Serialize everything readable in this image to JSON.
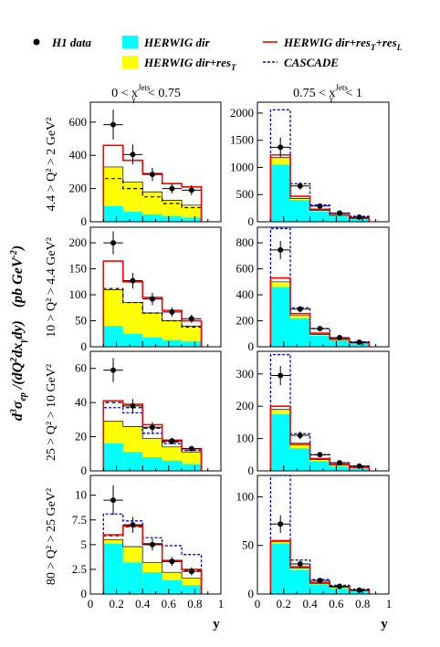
{
  "colors": {
    "dir": "#00ffff",
    "dirres": "#ffff00",
    "redline": "#ff0000",
    "cascade": "#0000ff",
    "data": "#000000",
    "dashed": "#000000"
  },
  "legend": {
    "data": "H1 data",
    "dir": "HERWIG dir",
    "dirres": "HERWIG dir+res",
    "dirres_sub": "T",
    "full": "HERWIG dir+res",
    "full_sub": "T",
    "full_tail": "+res",
    "full_sub2": "L",
    "cascade": "CASCADE"
  },
  "global_ylabel": "d³σ_ep / (dQ²dx_γ dy)   (pb GeV⁻²)",
  "global_ylabel_parts": {
    "main": "d",
    "sup3": "3",
    "sigma": "σ",
    "ep": "ep",
    "mid": " /(dQ",
    "sup2": "2",
    "dx": "dx",
    "gam": "γ",
    "end": "dy)",
    "units": "(pb GeV",
    "units_sup": "-2",
    "units_end": ")"
  },
  "xlabel": "y",
  "columns": [
    {
      "title_left": "0 < x",
      "title_sup": "Jets",
      "title_sub": "γ",
      "title_right": " < 0.75"
    },
    {
      "title_left": "0.75 < x",
      "title_sup": "Jets",
      "title_sub": "γ",
      "title_right": " < 1"
    }
  ],
  "rows": [
    {
      "label": "4.4 > Q² > 2 GeV²"
    },
    {
      "label": "10 > Q² > 4.4 GeV²"
    },
    {
      "label": "25 > Q² > 10 GeV²"
    },
    {
      "label": "80 > Q² > 25 GeV²"
    }
  ],
  "xticks": [
    "0",
    "0.2",
    "0.4",
    "0.6",
    "0.8",
    "1"
  ],
  "chart_data": [
    {
      "type": "bar",
      "row": 0,
      "col": 0,
      "ylim": [
        0,
        720
      ],
      "yticks": [
        0,
        200,
        400,
        600
      ],
      "bins": [
        0.1,
        0.25,
        0.4,
        0.55,
        0.7,
        0.85
      ],
      "dir": [
        95,
        60,
        45,
        35,
        25
      ],
      "dirres": [
        330,
        240,
        180,
        130,
        100
      ],
      "full": [
        460,
        370,
        290,
        230,
        210
      ],
      "dashed": [
        260,
        200,
        150,
        110,
        85
      ],
      "cascade": null,
      "points": {
        "x": [
          0.175,
          0.325,
          0.475,
          0.625,
          0.775
        ],
        "y": [
          585,
          405,
          285,
          200,
          190
        ],
        "err": [
          90,
          60,
          40,
          30,
          30
        ]
      }
    },
    {
      "type": "bar",
      "row": 0,
      "col": 1,
      "ylim": [
        0,
        2200
      ],
      "yticks": [
        0,
        500,
        1000,
        1500,
        2000
      ],
      "bins": [
        0.1,
        0.25,
        0.4,
        0.55,
        0.7,
        0.85
      ],
      "dir": [
        1050,
        400,
        190,
        110,
        50
      ],
      "dirres": [
        1180,
        430,
        210,
        120,
        60
      ],
      "full": [
        1230,
        470,
        230,
        130,
        65
      ],
      "dashed": null,
      "cascade": [
        2060,
        700,
        310,
        160,
        100
      ],
      "points": {
        "x": [
          0.175,
          0.325,
          0.475,
          0.625,
          0.775
        ],
        "y": [
          1370,
          660,
          290,
          160,
          85
        ],
        "err": [
          180,
          70,
          40,
          25,
          18
        ]
      }
    },
    {
      "type": "bar",
      "row": 1,
      "col": 0,
      "ylim": [
        0,
        230
      ],
      "yticks": [
        0,
        50,
        100,
        150,
        200
      ],
      "bins": [
        0.1,
        0.25,
        0.4,
        0.55,
        0.7,
        0.85
      ],
      "dir": [
        40,
        25,
        18,
        13,
        10
      ],
      "dirres": [
        110,
        85,
        65,
        50,
        40
      ],
      "full": [
        165,
        125,
        95,
        70,
        50
      ],
      "dashed": [
        112,
        85,
        65,
        50,
        38
      ],
      "cascade": null,
      "points": {
        "x": [
          0.175,
          0.325,
          0.475,
          0.625,
          0.775
        ],
        "y": [
          200,
          127,
          92,
          67,
          54
        ],
        "err": [
          22,
          15,
          12,
          9,
          8
        ]
      }
    },
    {
      "type": "bar",
      "row": 1,
      "col": 1,
      "ylim": [
        0,
        920
      ],
      "yticks": [
        0,
        200,
        400,
        600,
        800
      ],
      "bins": [
        0.1,
        0.25,
        0.4,
        0.55,
        0.7,
        0.85
      ],
      "dir": [
        460,
        220,
        85,
        50,
        25
      ],
      "dirres": [
        500,
        240,
        95,
        55,
        30
      ],
      "full": [
        530,
        255,
        105,
        60,
        32
      ],
      "dashed": null,
      "cascade": [
        910,
        300,
        140,
        65,
        38
      ],
      "points": {
        "x": [
          0.175,
          0.325,
          0.475,
          0.625,
          0.775
        ],
        "y": [
          745,
          290,
          140,
          70,
          35
        ],
        "err": [
          70,
          25,
          15,
          10,
          8
        ]
      }
    },
    {
      "type": "bar",
      "row": 2,
      "col": 0,
      "ylim": [
        0,
        70
      ],
      "yticks": [
        0,
        20,
        40,
        60
      ],
      "bins": [
        0.1,
        0.25,
        0.4,
        0.55,
        0.7,
        0.85
      ],
      "dir": [
        16,
        11,
        8,
        6,
        4
      ],
      "dirres": [
        29,
        26,
        19,
        14,
        11
      ],
      "full": [
        41,
        39,
        27,
        18,
        13
      ],
      "dashed": [
        40,
        37,
        25,
        17,
        12
      ],
      "cascade": [
        37,
        34,
        22,
        16,
        12
      ],
      "points": {
        "x": [
          0.175,
          0.325,
          0.475,
          0.625,
          0.775
        ],
        "y": [
          59,
          38,
          25.5,
          17.5,
          13
        ],
        "err": [
          7,
          4,
          3,
          2,
          1.5
        ]
      }
    },
    {
      "type": "bar",
      "row": 2,
      "col": 1,
      "ylim": [
        0,
        370
      ],
      "yticks": [
        0,
        100,
        200,
        300
      ],
      "bins": [
        0.1,
        0.25,
        0.4,
        0.55,
        0.7,
        0.85
      ],
      "dir": [
        175,
        70,
        30,
        15,
        8
      ],
      "dirres": [
        190,
        80,
        35,
        18,
        10
      ],
      "full": [
        200,
        85,
        38,
        20,
        11
      ],
      "dashed": null,
      "cascade": [
        360,
        115,
        50,
        25,
        15
      ],
      "points": {
        "x": [
          0.175,
          0.325,
          0.475,
          0.625,
          0.775
        ],
        "y": [
          295,
          110,
          50,
          25,
          15
        ],
        "err": [
          30,
          12,
          7,
          5,
          4
        ]
      }
    },
    {
      "type": "bar",
      "row": 3,
      "col": 0,
      "ylim": [
        0,
        12
      ],
      "yticks": [
        0,
        2.5,
        5,
        7.5,
        10
      ],
      "bins": [
        0.1,
        0.25,
        0.4,
        0.55,
        0.7,
        0.85
      ],
      "dir": [
        5.1,
        3.2,
        2.2,
        1.4,
        0.9
      ],
      "dirres": [
        5.5,
        4.8,
        3.2,
        2.2,
        1.6
      ],
      "full": [
        6.0,
        6.9,
        5.1,
        3.4,
        2.5
      ],
      "dashed": [
        5.9,
        6.8,
        5.0,
        3.3,
        2.4
      ],
      "cascade": [
        8.1,
        7.4,
        5.7,
        4.9,
        4.0
      ],
      "points": {
        "x": [
          0.175,
          0.325,
          0.475,
          0.625,
          0.775
        ],
        "y": [
          9.5,
          7.0,
          5.0,
          3.3,
          2.3
        ],
        "err": [
          1.5,
          0.8,
          0.6,
          0.45,
          0.4
        ]
      }
    },
    {
      "type": "bar",
      "row": 3,
      "col": 1,
      "ylim": [
        0,
        122
      ],
      "yticks": [
        0,
        50,
        100
      ],
      "bins": [
        0.1,
        0.25,
        0.4,
        0.55,
        0.7,
        0.85
      ],
      "dir": [
        52,
        25,
        10,
        6,
        3
      ],
      "dirres": [
        54,
        27,
        11,
        7,
        3.5
      ],
      "full": [
        55,
        28,
        12,
        7.5,
        4
      ],
      "dashed": null,
      "cascade": [
        122,
        35,
        15,
        9,
        5
      ],
      "points": {
        "x": [
          0.175,
          0.325,
          0.475,
          0.625,
          0.775
        ],
        "y": [
          72,
          31,
          14,
          8,
          4
        ],
        "err": [
          9,
          3.5,
          2.2,
          1.5,
          1
        ]
      }
    }
  ]
}
